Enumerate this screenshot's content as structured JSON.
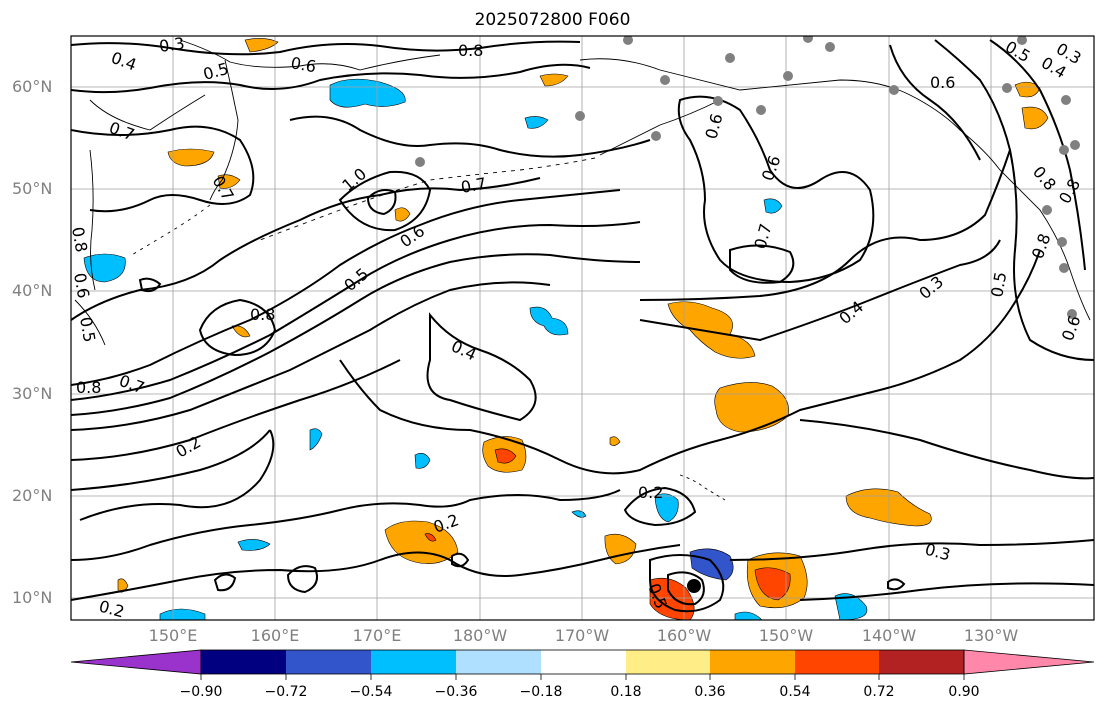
{
  "map": {
    "title": "2025072800 F060",
    "lat_labels": [
      "60°N",
      "50°N",
      "40°N",
      "30°N",
      "20°N",
      "10°N"
    ],
    "lon_labels": [
      "150°E",
      "160°E",
      "170°E",
      "180°W",
      "170°W",
      "160°W",
      "150°W",
      "140°W",
      "130°W"
    ],
    "contour_labels": [
      "0.3",
      "0.4",
      "0.5",
      "0.6",
      "0.7",
      "0.8",
      "0.6",
      "0.5",
      "0.6",
      "0.7",
      "0.8",
      "1.0",
      "0.7",
      "0.6",
      "0.5",
      "0.8",
      "0.4",
      "0.7",
      "0.8",
      "0.2",
      "0.2",
      "0.2",
      "0.3",
      "0.2",
      "0.5",
      "0.6",
      "0.7",
      "0.4",
      "0.3",
      "0.5",
      "0.6",
      "0.8",
      "0.8",
      "0.3",
      "0.4",
      "0.5",
      "0.8",
      "0.6"
    ],
    "colors": {
      "contour": "#000000",
      "grid": "#a0a0a0",
      "coast": "#000000",
      "stations": "#808080"
    }
  },
  "colorbar": {
    "ticks": [
      "−0.90",
      "−0.72",
      "−0.54",
      "−0.36",
      "−0.18",
      "0.18",
      "0.36",
      "0.54",
      "0.72",
      "0.90"
    ],
    "colors": [
      "#9933cc",
      "#000080",
      "#3355cc",
      "#00bfff",
      "#b0e0ff",
      "#ffffff",
      "#ffee88",
      "#ffa500",
      "#ff4500",
      "#b22222",
      "#ff88aa"
    ]
  }
}
